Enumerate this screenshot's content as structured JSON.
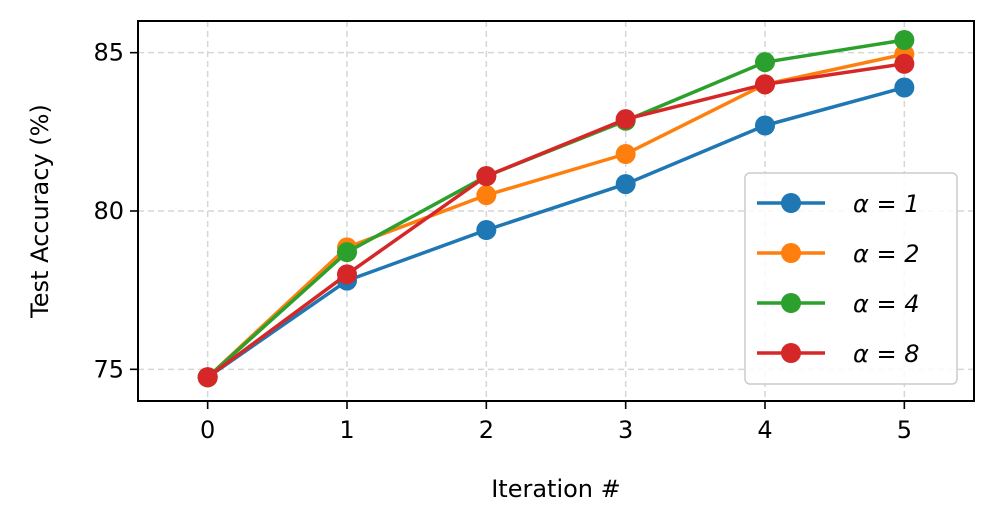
{
  "chart_data": {
    "type": "line",
    "title": "",
    "xlabel": "Iteration #",
    "ylabel": "Test Accuracy (%)",
    "x": [
      0,
      1,
      2,
      3,
      4,
      5
    ],
    "x_ticks": [
      0,
      1,
      2,
      3,
      4,
      5
    ],
    "y_ticks": [
      75,
      80,
      85
    ],
    "xlim": [
      -0.5,
      5.5
    ],
    "ylim": [
      74.0,
      86.0
    ],
    "grid": true,
    "legend_position": "lower-right",
    "series": [
      {
        "name": "α = 1",
        "color": "#1f77b4",
        "values": [
          74.75,
          77.8,
          79.4,
          80.85,
          82.7,
          83.9
        ]
      },
      {
        "name": "α = 2",
        "color": "#ff7f0e",
        "values": [
          74.75,
          78.85,
          80.5,
          81.8,
          84.0,
          84.95
        ]
      },
      {
        "name": "α = 4",
        "color": "#2ca02c",
        "values": [
          74.75,
          78.7,
          81.1,
          82.85,
          84.7,
          85.4
        ]
      },
      {
        "name": "α = 8",
        "color": "#d62728",
        "values": [
          74.75,
          78.0,
          81.1,
          82.9,
          84.0,
          84.65
        ]
      }
    ]
  }
}
